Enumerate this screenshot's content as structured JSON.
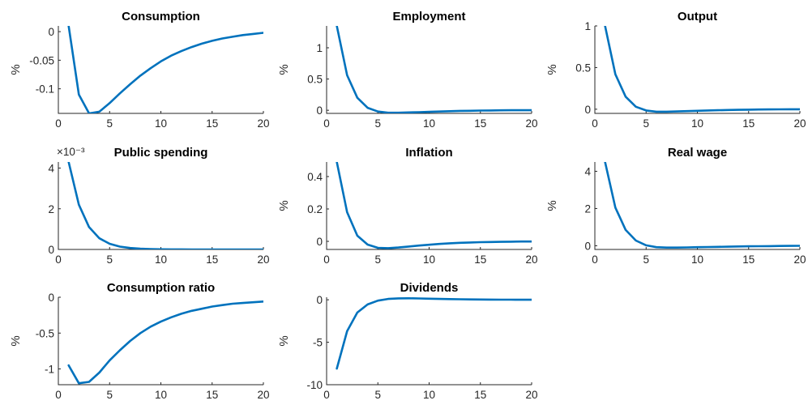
{
  "figure": {
    "background": "#ffffff",
    "line_color": "#0072BD"
  },
  "chart_data": [
    {
      "type": "line",
      "title": "Consumption",
      "ylabel": "%",
      "exponent": "",
      "xlim": [
        0,
        20
      ],
      "ylim": [
        -0.143,
        0.01
      ],
      "xticks": [
        "0",
        "5",
        "10",
        "15",
        "20"
      ],
      "xtick_values": [
        0,
        5,
        10,
        15,
        20
      ],
      "yticks": [
        "0",
        "-0.05",
        "-0.1"
      ],
      "ytick_values": [
        0,
        -0.05,
        -0.1
      ],
      "x": [
        1,
        2,
        3,
        4,
        5,
        6,
        7,
        8,
        9,
        10,
        11,
        12,
        13,
        14,
        15,
        16,
        17,
        18,
        19,
        20
      ],
      "values": [
        0.01,
        -0.11,
        -0.143,
        -0.14,
        -0.125,
        -0.108,
        -0.092,
        -0.077,
        -0.064,
        -0.052,
        -0.042,
        -0.034,
        -0.027,
        -0.021,
        -0.016,
        -0.012,
        -0.009,
        -0.006,
        -0.004,
        -0.002
      ]
    },
    {
      "type": "line",
      "title": "Employment",
      "ylabel": "%",
      "exponent": "",
      "xlim": [
        0,
        20
      ],
      "ylim": [
        -0.05,
        1.35
      ],
      "xticks": [
        "0",
        "5",
        "10",
        "15",
        "20"
      ],
      "xtick_values": [
        0,
        5,
        10,
        15,
        20
      ],
      "yticks": [
        "0",
        "0.5",
        "1"
      ],
      "ytick_values": [
        0,
        0.5,
        1
      ],
      "x": [
        1,
        2,
        3,
        4,
        5,
        6,
        7,
        8,
        9,
        10,
        11,
        12,
        13,
        14,
        15,
        16,
        17,
        18,
        19,
        20
      ],
      "values": [
        1.35,
        0.56,
        0.2,
        0.04,
        -0.02,
        -0.04,
        -0.04,
        -0.035,
        -0.03,
        -0.025,
        -0.02,
        -0.015,
        -0.01,
        -0.008,
        -0.005,
        -0.003,
        -0.001,
        0,
        0.001,
        0.001
      ]
    },
    {
      "type": "line",
      "title": "Output",
      "ylabel": "%",
      "exponent": "",
      "xlim": [
        0,
        20
      ],
      "ylim": [
        -0.05,
        1
      ],
      "xticks": [
        "0",
        "5",
        "10",
        "15",
        "20"
      ],
      "xtick_values": [
        0,
        5,
        10,
        15,
        20
      ],
      "yticks": [
        "0",
        "0.5",
        "1"
      ],
      "ytick_values": [
        0,
        0.5,
        1
      ],
      "x": [
        1,
        2,
        3,
        4,
        5,
        6,
        7,
        8,
        9,
        10,
        11,
        12,
        13,
        14,
        15,
        16,
        17,
        18,
        19,
        20
      ],
      "values": [
        1.0,
        0.42,
        0.15,
        0.03,
        -0.015,
        -0.03,
        -0.03,
        -0.027,
        -0.023,
        -0.019,
        -0.015,
        -0.012,
        -0.009,
        -0.007,
        -0.005,
        -0.003,
        -0.002,
        -0.001,
        0,
        0
      ]
    },
    {
      "type": "line",
      "title": "Public spending",
      "ylabel": "",
      "exponent": "×10⁻³",
      "xlim": [
        0,
        20
      ],
      "ylim": [
        0,
        4.3
      ],
      "xticks": [
        "0",
        "5",
        "10",
        "15",
        "20"
      ],
      "xtick_values": [
        0,
        5,
        10,
        15,
        20
      ],
      "yticks": [
        "0",
        "2",
        "4"
      ],
      "ytick_values": [
        0,
        2,
        4
      ],
      "x": [
        1,
        2,
        3,
        4,
        5,
        6,
        7,
        8,
        9,
        10,
        11,
        12,
        13,
        14,
        15,
        16,
        17,
        18,
        19,
        20
      ],
      "values": [
        4.3,
        2.2,
        1.1,
        0.55,
        0.28,
        0.14,
        0.07,
        0.035,
        0.018,
        0.009,
        0.005,
        0.002,
        0.001,
        0.001,
        0,
        0,
        0,
        0,
        0,
        0
      ]
    },
    {
      "type": "line",
      "title": "Inflation",
      "ylabel": "%",
      "exponent": "",
      "xlim": [
        0,
        20
      ],
      "ylim": [
        -0.05,
        0.49
      ],
      "xticks": [
        "0",
        "5",
        "10",
        "15",
        "20"
      ],
      "xtick_values": [
        0,
        5,
        10,
        15,
        20
      ],
      "yticks": [
        "0",
        "0.2",
        "0.4"
      ],
      "ytick_values": [
        0,
        0.2,
        0.4
      ],
      "x": [
        1,
        2,
        3,
        4,
        5,
        6,
        7,
        8,
        9,
        10,
        11,
        12,
        13,
        14,
        15,
        16,
        17,
        18,
        19,
        20
      ],
      "values": [
        0.49,
        0.18,
        0.035,
        -0.02,
        -0.04,
        -0.042,
        -0.038,
        -0.032,
        -0.026,
        -0.021,
        -0.016,
        -0.012,
        -0.009,
        -0.007,
        -0.005,
        -0.004,
        -0.003,
        -0.002,
        -0.001,
        -0.001
      ]
    },
    {
      "type": "line",
      "title": "Real wage",
      "ylabel": "%",
      "exponent": "",
      "xlim": [
        0,
        20
      ],
      "ylim": [
        -0.2,
        4.5
      ],
      "xticks": [
        "0",
        "5",
        "10",
        "15",
        "20"
      ],
      "xtick_values": [
        0,
        5,
        10,
        15,
        20
      ],
      "yticks": [
        "0",
        "2",
        "4"
      ],
      "ytick_values": [
        0,
        2,
        4
      ],
      "x": [
        1,
        2,
        3,
        4,
        5,
        6,
        7,
        8,
        9,
        10,
        11,
        12,
        13,
        14,
        15,
        16,
        17,
        18,
        19,
        20
      ],
      "values": [
        4.5,
        2.05,
        0.85,
        0.28,
        0.02,
        -0.08,
        -0.1,
        -0.1,
        -0.09,
        -0.08,
        -0.07,
        -0.06,
        -0.05,
        -0.04,
        -0.03,
        -0.025,
        -0.02,
        -0.015,
        -0.01,
        -0.005
      ]
    },
    {
      "type": "line",
      "title": "Consumption ratio",
      "ylabel": "%",
      "exponent": "",
      "xlim": [
        0,
        20
      ],
      "ylim": [
        -1.22,
        0
      ],
      "xticks": [
        "0",
        "5",
        "10",
        "15",
        "20"
      ],
      "xtick_values": [
        0,
        5,
        10,
        15,
        20
      ],
      "yticks": [
        "0",
        "-0.5",
        "-1"
      ],
      "ytick_values": [
        0,
        -0.5,
        -1
      ],
      "x": [
        1,
        2,
        3,
        4,
        5,
        6,
        7,
        8,
        9,
        10,
        11,
        12,
        13,
        14,
        15,
        16,
        17,
        18,
        19,
        20
      ],
      "values": [
        -0.95,
        -1.2,
        -1.18,
        -1.05,
        -0.88,
        -0.74,
        -0.61,
        -0.5,
        -0.41,
        -0.34,
        -0.28,
        -0.23,
        -0.19,
        -0.16,
        -0.13,
        -0.11,
        -0.09,
        -0.08,
        -0.07,
        -0.06
      ]
    },
    {
      "type": "line",
      "title": "Dividends",
      "ylabel": "%",
      "exponent": "",
      "xlim": [
        0,
        20
      ],
      "ylim": [
        -10,
        0.3
      ],
      "xticks": [
        "0",
        "5",
        "10",
        "15",
        "20"
      ],
      "xtick_values": [
        0,
        5,
        10,
        15,
        20
      ],
      "yticks": [
        "0",
        "-5",
        "-10"
      ],
      "ytick_values": [
        0,
        -5,
        -10
      ],
      "x": [
        1,
        2,
        3,
        4,
        5,
        6,
        7,
        8,
        9,
        10,
        11,
        12,
        13,
        14,
        15,
        16,
        17,
        18,
        19,
        20
      ],
      "values": [
        -8.1,
        -3.7,
        -1.5,
        -0.55,
        -0.1,
        0.1,
        0.17,
        0.18,
        0.16,
        0.13,
        0.1,
        0.08,
        0.06,
        0.04,
        0.03,
        0.02,
        0.01,
        0.01,
        0,
        0
      ]
    }
  ]
}
